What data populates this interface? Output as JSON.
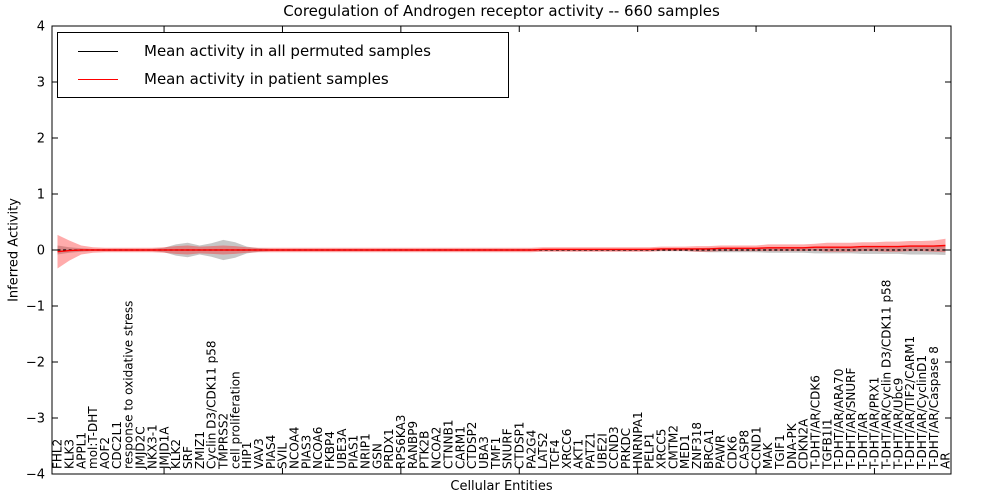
{
  "title": "Coregulation of Androgen receptor activity -- 660 samples",
  "colors": {
    "black_line": "#000000",
    "red_line": "#ff0000",
    "gray_band": "rgba(128,128,128,0.45)",
    "red_band": "rgba(255,0,0,0.33)"
  },
  "chart_data": {
    "type": "line",
    "title": "Coregulation of Androgen receptor activity -- 660 samples",
    "xlabel": "Cellular Entities",
    "ylabel": "Inferred Activity",
    "ylim": [
      -4,
      4
    ],
    "yticks": [
      -4,
      -3,
      -2,
      -1,
      0,
      1,
      2,
      3,
      4
    ],
    "x_major_ticks_every": 10,
    "grid": false,
    "legend_position": "upper left",
    "categories": [
      "FHL2",
      "KLK3",
      "APPL1",
      "mol:T-DHT",
      "AOF2",
      "CDC2L1",
      "response to oxidative stress",
      "JMJD2C",
      "NKX3-1",
      "JMJD1A",
      "KLK2",
      "SRF",
      "ZMIZ1",
      "Cyclin D3/CDK11 p58",
      "TMPRSS2",
      "cell proliferation",
      "HIP1",
      "VAV3",
      "PIAS4",
      "SVIL",
      "NCOA4",
      "PIAS3",
      "NCOA6",
      "FKBP4",
      "UBE3A",
      "PIAS1",
      "NRIP1",
      "GSN",
      "PRDX1",
      "RPS6KA3",
      "RANBP9",
      "PTK2B",
      "NCOA2",
      "CTNNB1",
      "CARM1",
      "CTDSP2",
      "UBA3",
      "TMF1",
      "SNURF",
      "CTDSP1",
      "PA2G4",
      "LATS2",
      "TCF4",
      "XRCC6",
      "AKT1",
      "PATZ1",
      "UBE2I",
      "CCND3",
      "PRKDC",
      "HNRNPA1",
      "PELP1",
      "XRCC5",
      "CMTM2",
      "MED1",
      "ZNF318",
      "BRCA1",
      "PAWR",
      "CDK6",
      "CASP8",
      "CCND1",
      "MAK",
      "TGIF1",
      "DNA-PK",
      "CDKN2A",
      "T-DHT/AR/CDK6",
      "TGFB1I1",
      "T-DHT/AR/ARA70",
      "T-DHT/AR/SNURF",
      "T-DHT/AR",
      "T-DHT/AR/PRX1",
      "T-DHT/AR/Cyclin D3/CDK11 p58",
      "T-DHT/AR/Ubc9",
      "T-DHT/AR/TIF2/CARM1",
      "T-DHT/AR/CyclinD1",
      "T-DHT/AR/Caspase 8",
      "AR"
    ],
    "series": [
      {
        "name": "Mean activity in all permuted samples",
        "color": "#000000",
        "style": "dashed",
        "band_color": "rgba(128,128,128,0.45)",
        "values": [
          0,
          0,
          0,
          0,
          0,
          0,
          0,
          0,
          0,
          0,
          0,
          0,
          0,
          0,
          0,
          0,
          0,
          0,
          0,
          0,
          0,
          0,
          0,
          0,
          0,
          0,
          0,
          0,
          0,
          0,
          0,
          0,
          0,
          0,
          0,
          0,
          0,
          0,
          0,
          0,
          0,
          0,
          0,
          0,
          0,
          0,
          0,
          0,
          0,
          0,
          0,
          0,
          0,
          0,
          0,
          0,
          0,
          0,
          0,
          0,
          0,
          0,
          0,
          0,
          0,
          0,
          0,
          0,
          0,
          0,
          0,
          0,
          0,
          0,
          0,
          0
        ],
        "band_halfwidth": [
          0.08,
          0.05,
          0.03,
          0.02,
          0.02,
          0.02,
          0.02,
          0.02,
          0.02,
          0.04,
          0.1,
          0.13,
          0.08,
          0.12,
          0.18,
          0.14,
          0.06,
          0.03,
          0.02,
          0.02,
          0.02,
          0.02,
          0.02,
          0.02,
          0.02,
          0.02,
          0.02,
          0.02,
          0.02,
          0.02,
          0.02,
          0.02,
          0.02,
          0.02,
          0.02,
          0.02,
          0.02,
          0.02,
          0.02,
          0.02,
          0.02,
          0.02,
          0.02,
          0.02,
          0.02,
          0.02,
          0.02,
          0.02,
          0.02,
          0.02,
          0.02,
          0.02,
          0.02,
          0.02,
          0.03,
          0.04,
          0.04,
          0.04,
          0.04,
          0.04,
          0.05,
          0.05,
          0.05,
          0.05,
          0.06,
          0.06,
          0.06,
          0.06,
          0.07,
          0.07,
          0.07,
          0.07,
          0.08,
          0.08,
          0.08,
          0.09
        ]
      },
      {
        "name": "Mean activity in patient samples",
        "color": "#ff0000",
        "style": "solid",
        "band_color": "rgba(255,0,0,0.33)",
        "values": [
          -0.03,
          -0.01,
          0,
          0,
          0,
          0,
          0,
          0,
          0,
          0,
          0,
          0,
          0,
          0,
          0,
          0,
          0,
          0,
          0,
          0,
          0,
          0,
          0,
          0,
          0,
          0,
          0,
          0,
          0,
          0,
          0,
          0,
          0,
          0,
          0,
          0,
          0,
          0,
          0,
          0,
          0,
          0.01,
          0.01,
          0.01,
          0.01,
          0.01,
          0.01,
          0.01,
          0.01,
          0.01,
          0.01,
          0.02,
          0.02,
          0.02,
          0.02,
          0.02,
          0.03,
          0.03,
          0.03,
          0.03,
          0.04,
          0.04,
          0.04,
          0.04,
          0.05,
          0.05,
          0.05,
          0.05,
          0.06,
          0.06,
          0.06,
          0.06,
          0.07,
          0.07,
          0.07,
          0.08
        ],
        "band_halfwidth": [
          0.3,
          0.18,
          0.08,
          0.05,
          0.04,
          0.04,
          0.04,
          0.04,
          0.04,
          0.05,
          0.07,
          0.08,
          0.06,
          0.07,
          0.08,
          0.07,
          0.05,
          0.04,
          0.04,
          0.04,
          0.04,
          0.04,
          0.04,
          0.04,
          0.04,
          0.04,
          0.04,
          0.04,
          0.04,
          0.04,
          0.04,
          0.04,
          0.04,
          0.04,
          0.04,
          0.04,
          0.04,
          0.04,
          0.04,
          0.04,
          0.04,
          0.04,
          0.04,
          0.04,
          0.04,
          0.04,
          0.04,
          0.04,
          0.04,
          0.04,
          0.04,
          0.04,
          0.04,
          0.04,
          0.05,
          0.05,
          0.05,
          0.05,
          0.05,
          0.05,
          0.06,
          0.06,
          0.06,
          0.06,
          0.06,
          0.08,
          0.08,
          0.08,
          0.08,
          0.08,
          0.09,
          0.09,
          0.09,
          0.09,
          0.1,
          0.12
        ]
      }
    ]
  }
}
